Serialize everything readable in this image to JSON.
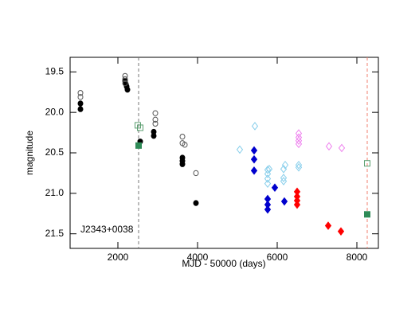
{
  "chart_data": {
    "type": "scatter",
    "xlabel": "MJD - 50000 (days)",
    "ylabel": "magnitude",
    "annotation": "J2343+0038",
    "xlim": [
      800,
      8540
    ],
    "xticks": [
      2000,
      4000,
      6000,
      8000
    ],
    "ylim": [
      19.32,
      21.68
    ],
    "y_inverted": true,
    "yticks": [
      19.5,
      {
        "value": 20,
        "label": "20.0"
      },
      20.5,
      {
        "value": 21,
        "label": "21.0"
      },
      21.5
    ],
    "vlines": [
      {
        "x": 2520,
        "color": "#777777"
      },
      {
        "x": 8260,
        "color": "#f08070"
      }
    ],
    "series": [
      {
        "marker": "circle-filled",
        "color": "#000000",
        "x": [
          1060,
          1060,
          2180,
          2200,
          2220,
          2240,
          2560,
          2900,
          2900,
          3620,
          3620,
          3620,
          3960
        ],
        "values": [
          19.89,
          19.96,
          19.61,
          19.65,
          19.68,
          19.72,
          20.36,
          20.24,
          20.29,
          20.56,
          20.6,
          20.64,
          21.12
        ]
      },
      {
        "marker": "circle-open",
        "color": "#555555",
        "x": [
          1060,
          1060,
          2180,
          2180,
          2180,
          2940,
          2940,
          2940,
          3620,
          3620,
          3680,
          3960
        ],
        "values": [
          19.76,
          19.81,
          19.55,
          19.59,
          19.64,
          20.01,
          20.09,
          20.14,
          20.3,
          20.38,
          20.4,
          20.75
        ]
      },
      {
        "marker": "square-open",
        "color": "#5a9e6f",
        "x": [
          2500,
          2560,
          8260
        ],
        "values": [
          20.16,
          20.19,
          20.63
        ]
      },
      {
        "marker": "square-filled",
        "color": "#2e8b57",
        "x": [
          2520,
          8260
        ],
        "values": [
          20.41,
          21.26
        ]
      },
      {
        "marker": "diamond-open",
        "color": "#87ceeb",
        "x": [
          5060,
          5440,
          5760,
          5760,
          5760,
          5760,
          5800,
          6160,
          6160,
          6160,
          6200,
          6540,
          6540
        ],
        "values": [
          20.46,
          20.17,
          20.71,
          20.76,
          20.82,
          20.88,
          20.7,
          20.7,
          20.81,
          20.85,
          20.65,
          20.65,
          20.68
        ]
      },
      {
        "marker": "diamond-filled",
        "color": "#0000cd",
        "x": [
          5420,
          5420,
          5420,
          5760,
          5760,
          5760,
          5940,
          6180
        ],
        "values": [
          20.47,
          20.58,
          20.72,
          21.07,
          21.14,
          21.2,
          20.93,
          21.1
        ]
      },
      {
        "marker": "diamond-open",
        "color": "#ee82ee",
        "x": [
          6540,
          6540,
          6540,
          6540,
          7300,
          7620
        ],
        "values": [
          20.26,
          20.31,
          20.35,
          20.39,
          20.42,
          20.44
        ]
      },
      {
        "marker": "diamond-filled",
        "color": "#ff0000",
        "x": [
          6500,
          6500,
          6500,
          6500,
          7280,
          7600
        ],
        "values": [
          20.98,
          21.04,
          21.09,
          21.14,
          21.4,
          21.47
        ]
      }
    ]
  }
}
